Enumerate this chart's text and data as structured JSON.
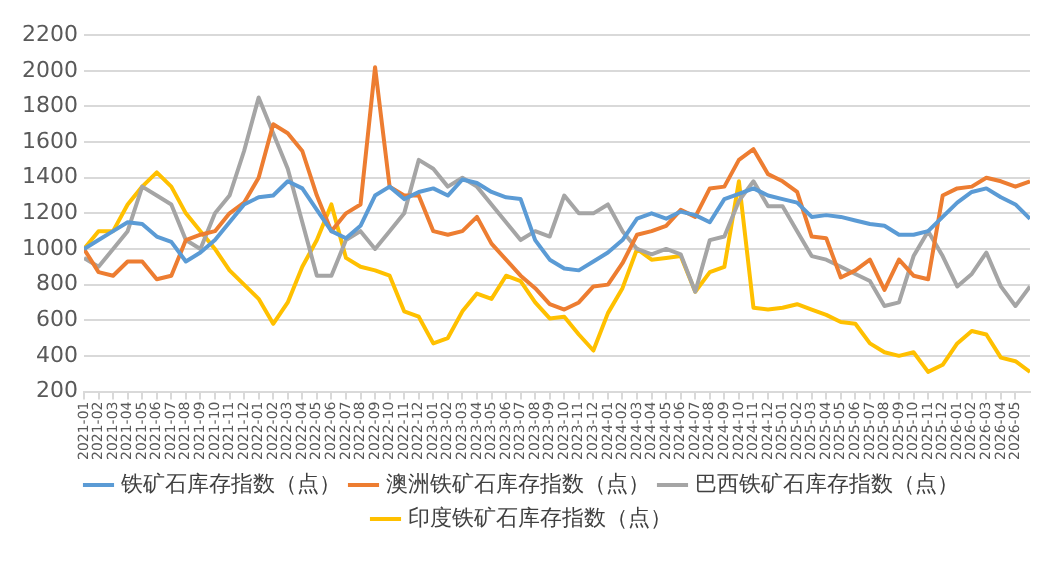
{
  "chart_data": {
    "type": "line",
    "x": [
      "2021-01",
      "2021-02",
      "2021-03",
      "2021-04",
      "2021-05",
      "2021-06",
      "2021-07",
      "2021-08",
      "2021-09",
      "2021-10",
      "2021-11",
      "2021-12",
      "2022-01",
      "2022-02",
      "2022-03",
      "2022-04",
      "2022-05",
      "2022-06",
      "2022-07",
      "2022-08",
      "2022-09",
      "2022-10",
      "2022-11",
      "2022-12",
      "2023-01",
      "2023-02",
      "2023-03",
      "2023-04",
      "2023-05",
      "2023-06",
      "2023-07",
      "2023-08",
      "2023-09",
      "2023-10",
      "2023-11",
      "2023-12",
      "2024-01",
      "2024-02",
      "2024-03",
      "2024-04",
      "2024-05",
      "2024-06",
      "2024-07",
      "2024-08",
      "2024-09",
      "2024-10",
      "2024-11",
      "2024-12",
      "2025-01",
      "2025-02",
      "2025-03",
      "2025-04",
      "2025-05",
      "2025-06",
      "2025-07",
      "2025-08",
      "2025-09",
      "2025-10",
      "2025-11",
      "2025-12",
      "2026-01",
      "2026-02",
      "2026-03",
      "2026-04",
      "2026-05",
      "2026-06"
    ],
    "series": [
      {
        "name": "铁矿石库存指数（点）",
        "color": "#5b9bd5",
        "values": [
          1000,
          1050,
          1100,
          1150,
          1140,
          1070,
          1040,
          930,
          980,
          1050,
          1150,
          1250,
          1290,
          1300,
          1380,
          1340,
          1220,
          1100,
          1060,
          1130,
          1300,
          1350,
          1280,
          1320,
          1340,
          1300,
          1390,
          1370,
          1320,
          1290,
          1280,
          1050,
          940,
          890,
          880,
          930,
          980,
          1050,
          1170,
          1200,
          1170,
          1210,
          1190,
          1150,
          1280,
          1310,
          1340,
          1300,
          1280,
          1260,
          1180,
          1190,
          1180,
          1160,
          1140,
          1130,
          1080,
          1080,
          1100,
          1180,
          1260,
          1320,
          1340,
          1290,
          1250,
          1170
        ]
      },
      {
        "name": "澳洲铁矿石库存指数（点）",
        "color": "#ed7d31",
        "values": [
          1000,
          870,
          850,
          930,
          930,
          830,
          850,
          1050,
          1080,
          1100,
          1200,
          1260,
          1400,
          1700,
          1650,
          1550,
          1300,
          1100,
          1200,
          1250,
          2020,
          1350,
          1300,
          1300,
          1100,
          1080,
          1100,
          1180,
          1030,
          940,
          850,
          780,
          690,
          660,
          700,
          790,
          800,
          920,
          1080,
          1100,
          1130,
          1220,
          1180,
          1340,
          1350,
          1500,
          1560,
          1420,
          1380,
          1320,
          1070,
          1060,
          840,
          880,
          940,
          770,
          940,
          850,
          830,
          1300,
          1340,
          1350,
          1400,
          1380,
          1350,
          1380
        ]
      },
      {
        "name": "巴西铁矿石库存指数（点）",
        "color": "#a5a5a5",
        "values": [
          950,
          900,
          1000,
          1100,
          1350,
          1300,
          1250,
          1050,
          1000,
          1200,
          1300,
          1550,
          1850,
          1650,
          1450,
          1150,
          850,
          850,
          1050,
          1100,
          1000,
          1100,
          1200,
          1500,
          1450,
          1350,
          1400,
          1350,
          1250,
          1150,
          1050,
          1100,
          1070,
          1300,
          1200,
          1200,
          1250,
          1100,
          1000,
          970,
          1000,
          970,
          760,
          1050,
          1070,
          1270,
          1380,
          1240,
          1240,
          1100,
          960,
          940,
          900,
          860,
          820,
          680,
          700,
          960,
          1100,
          960,
          790,
          860,
          980,
          790,
          680,
          790
        ]
      },
      {
        "name": "印度铁矿石库存指数（点）",
        "color": "#ffc000",
        "values": [
          1000,
          1100,
          1100,
          1250,
          1350,
          1430,
          1350,
          1200,
          1100,
          1000,
          880,
          800,
          720,
          580,
          700,
          900,
          1050,
          1250,
          950,
          900,
          880,
          850,
          650,
          620,
          470,
          500,
          650,
          750,
          720,
          850,
          820,
          700,
          610,
          620,
          520,
          430,
          640,
          780,
          1000,
          940,
          950,
          960,
          760,
          870,
          900,
          1380,
          670,
          660,
          670,
          690,
          660,
          630,
          590,
          580,
          470,
          420,
          400,
          420,
          310,
          350,
          470,
          540,
          520,
          390,
          370,
          310
        ]
      }
    ],
    "xlim": [
      "2021-01",
      "2026-06"
    ],
    "xticks": [
      "2021-01",
      "2021-02",
      "2021-03",
      "2021-04",
      "2021-05",
      "2021-06",
      "2021-07",
      "2021-08",
      "2021-09",
      "2021-10",
      "2021-11",
      "2021-12",
      "2022-01",
      "2022-02",
      "2022-03",
      "2022-04",
      "2022-05",
      "2022-06",
      "2022-07",
      "2022-08",
      "2022-09",
      "2022-10",
      "2022-11",
      "2022-12",
      "2023-01",
      "2023-02",
      "2023-03",
      "2023-04",
      "2023-05",
      "2023-06",
      "2023-07",
      "2023-08",
      "2023-09",
      "2023-10",
      "2023-11",
      "2023-12",
      "2024-01",
      "2024-02",
      "2024-03",
      "2024-04",
      "2024-05",
      "2024-06",
      "2024-07",
      "2024-08",
      "2024-09",
      "2024-10",
      "2024-11",
      "2024-12",
      "2025-01",
      "2025-02",
      "2025-03",
      "2025-04",
      "2025-05",
      "2025-06",
      "2025-07",
      "2025-08",
      "2025-09",
      "2025-10",
      "2025-11",
      "2025-12",
      "2026-01",
      "2026-02",
      "2026-03",
      "2026-04",
      "2026-05"
    ],
    "ylim": [
      200,
      2200
    ],
    "yticks": [
      200,
      400,
      600,
      800,
      1000,
      1200,
      1400,
      1600,
      1800,
      2000,
      2200
    ],
    "grid": "y",
    "legend": "bottom",
    "marker": "none",
    "line_style": "solid"
  }
}
